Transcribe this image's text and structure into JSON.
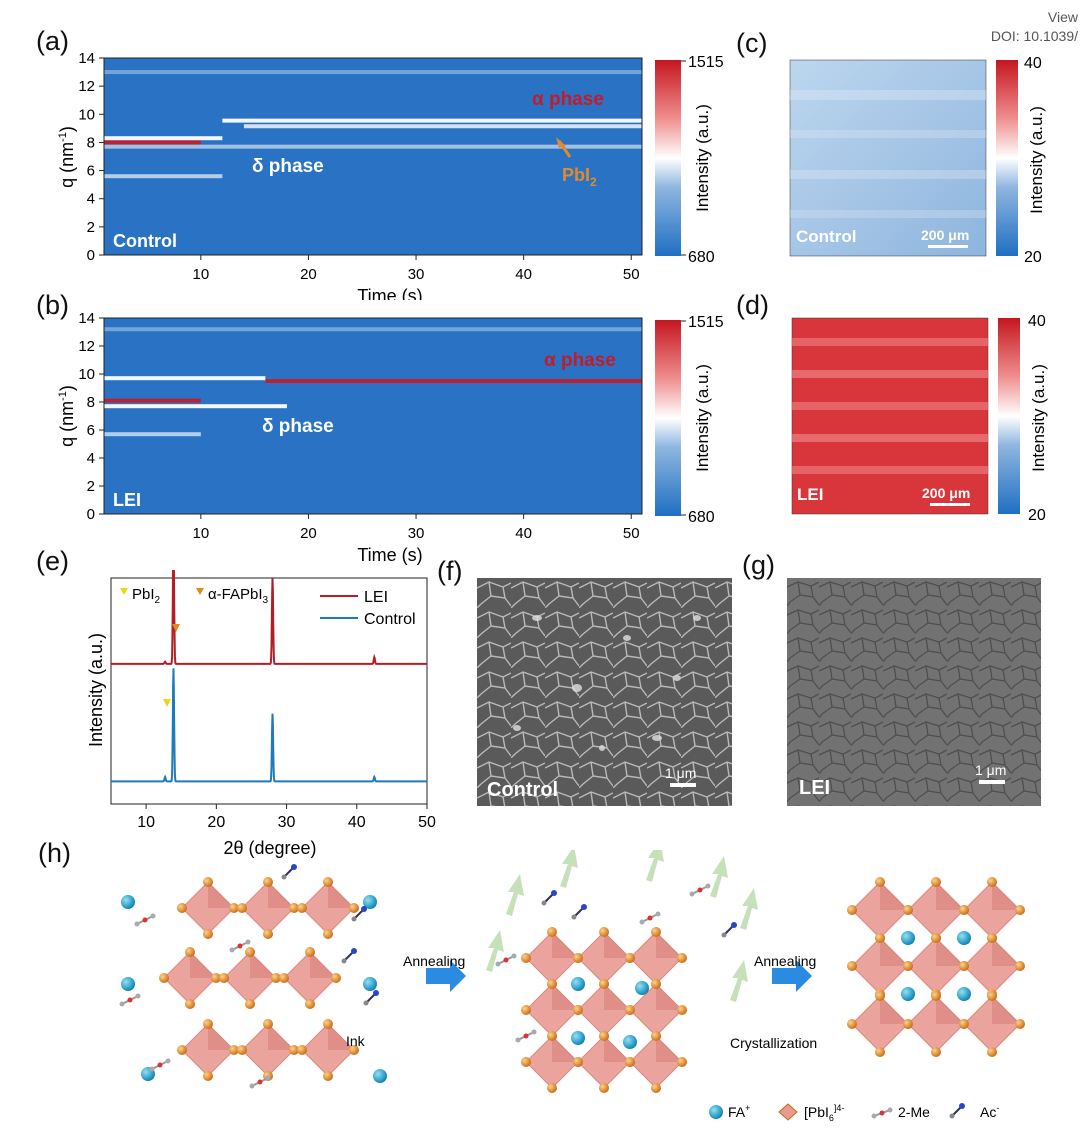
{
  "header": {
    "view_link": "View",
    "doi": "DOI: 10.1039/"
  },
  "panel_labels": {
    "a": "(a)",
    "b": "(b)",
    "c": "(c)",
    "d": "(d)",
    "e": "(e)",
    "f": "(f)",
    "g": "(g)",
    "h": "(h)"
  },
  "colorbar_ab": {
    "max": "1515",
    "min": "680",
    "label": "Intensity (a.u.)"
  },
  "colorbar_cd": {
    "max": "40",
    "min": "20",
    "label": "Intensity (a.u.)"
  },
  "panel_a": {
    "sample": "Control",
    "alpha": "α phase",
    "delta": "δ phase",
    "pbi2": "PbI",
    "pbi2_sub": "2"
  },
  "panel_b": {
    "sample": "LEI",
    "alpha": "α phase",
    "delta": "δ phase"
  },
  "panel_c": {
    "sample": "Control",
    "scale": "200 μm"
  },
  "panel_d": {
    "sample": "LEI",
    "scale": "200 μm"
  },
  "panel_f": {
    "sample": "Control",
    "scale": "1 μm"
  },
  "panel_g": {
    "sample": "LEI",
    "scale": "1 μm"
  },
  "panel_h": {
    "annealing1": "Annealing",
    "annealing2": "Annealing",
    "ink": "Ink",
    "crystallization": "Crystallization",
    "legend": {
      "fa": "FA",
      "fa_sup": "+",
      "pbi6": "[PbI",
      "pbi6_sub": "6",
      "pbi6_sup": "]4-",
      "me": "2-Me",
      "ac": "Ac",
      "ac_sup": "-"
    }
  },
  "chart_data": [
    {
      "id": "a",
      "type": "heatmap",
      "title": "",
      "xlabel": "Time (s)",
      "ylabel": "q (nm",
      "ylabel_sup": "-1",
      "ylabel_end": ")",
      "xlim": [
        1,
        51
      ],
      "ylim": [
        0,
        14
      ],
      "xticks": [
        "10",
        "20",
        "30",
        "40",
        "50"
      ],
      "yticks": [
        "0",
        "2",
        "4",
        "6",
        "8",
        "10",
        "12",
        "14"
      ],
      "bands": [
        {
          "q": 8.0,
          "t_start": 1,
          "t_end": 10,
          "color": "#c21c2a"
        },
        {
          "q": 8.3,
          "t_start": 1,
          "t_end": 12,
          "color": "#ffffff"
        },
        {
          "q": 9.55,
          "t_start": 12,
          "t_end": 51,
          "color": "#ffffff"
        },
        {
          "q": 9.15,
          "t_start": 14,
          "t_end": 51,
          "color": "#dfe9f4"
        },
        {
          "q": 7.7,
          "t_start": 1,
          "t_end": 51,
          "color": "#a9c4e2"
        },
        {
          "q": 5.6,
          "t_start": 1,
          "t_end": 12,
          "color": "#bcd2ea"
        },
        {
          "q": 13.0,
          "t_start": 1,
          "t_end": 51,
          "color": "#7aa7d6"
        }
      ]
    },
    {
      "id": "b",
      "type": "heatmap",
      "title": "",
      "xlabel": "Time (s)",
      "ylabel": "q (nm",
      "ylabel_sup": "-1",
      "ylabel_end": ")",
      "xlim": [
        1,
        51
      ],
      "ylim": [
        0,
        14
      ],
      "xticks": [
        "10",
        "20",
        "30",
        "40",
        "50"
      ],
      "yticks": [
        "0",
        "2",
        "4",
        "6",
        "8",
        "10",
        "12",
        "14"
      ],
      "bands": [
        {
          "q": 9.5,
          "t_start": 16,
          "t_end": 51,
          "color": "#c21c2a"
        },
        {
          "q": 9.7,
          "t_start": 1,
          "t_end": 16,
          "color": "#ffffff"
        },
        {
          "q": 8.1,
          "t_start": 1,
          "t_end": 10,
          "color": "#c21c2a"
        },
        {
          "q": 7.7,
          "t_start": 1,
          "t_end": 18,
          "color": "#ffffff"
        },
        {
          "q": 5.7,
          "t_start": 1,
          "t_end": 10,
          "color": "#bcd2ea"
        },
        {
          "q": 13.2,
          "t_start": 1,
          "t_end": 51,
          "color": "#7aa7d6"
        }
      ]
    },
    {
      "id": "e",
      "type": "line",
      "title": "",
      "xlabel": "2θ (degree)",
      "ylabel": "Intensity (a.u.)",
      "xlim": [
        5,
        50
      ],
      "xticks": [
        "10",
        "20",
        "30",
        "40",
        "50"
      ],
      "legend": [
        {
          "name": "LEI",
          "color": "#b21e24"
        },
        {
          "name": "Control",
          "color": "#1f7ab8"
        }
      ],
      "markers": [
        {
          "name": "PbI",
          "sub": "2",
          "color": "#f2d21a"
        },
        {
          "name": "α-FAPbI",
          "sub": "3",
          "color": "#e08a1e"
        }
      ],
      "series": [
        {
          "name": "LEI",
          "baseline": 0.62,
          "peaks": [
            {
              "x": 12.7,
              "h": 0.01
            },
            {
              "x": 13.9,
              "h": 0.55
            },
            {
              "x": 28.0,
              "h": 0.38
            },
            {
              "x": 42.5,
              "h": 0.03
            }
          ]
        },
        {
          "name": "Control",
          "baseline": 0.1,
          "peaks": [
            {
              "x": 12.7,
              "h": 0.02
            },
            {
              "x": 13.9,
              "h": 0.5
            },
            {
              "x": 28.0,
              "h": 0.3
            },
            {
              "x": 42.5,
              "h": 0.02
            }
          ]
        }
      ]
    }
  ]
}
